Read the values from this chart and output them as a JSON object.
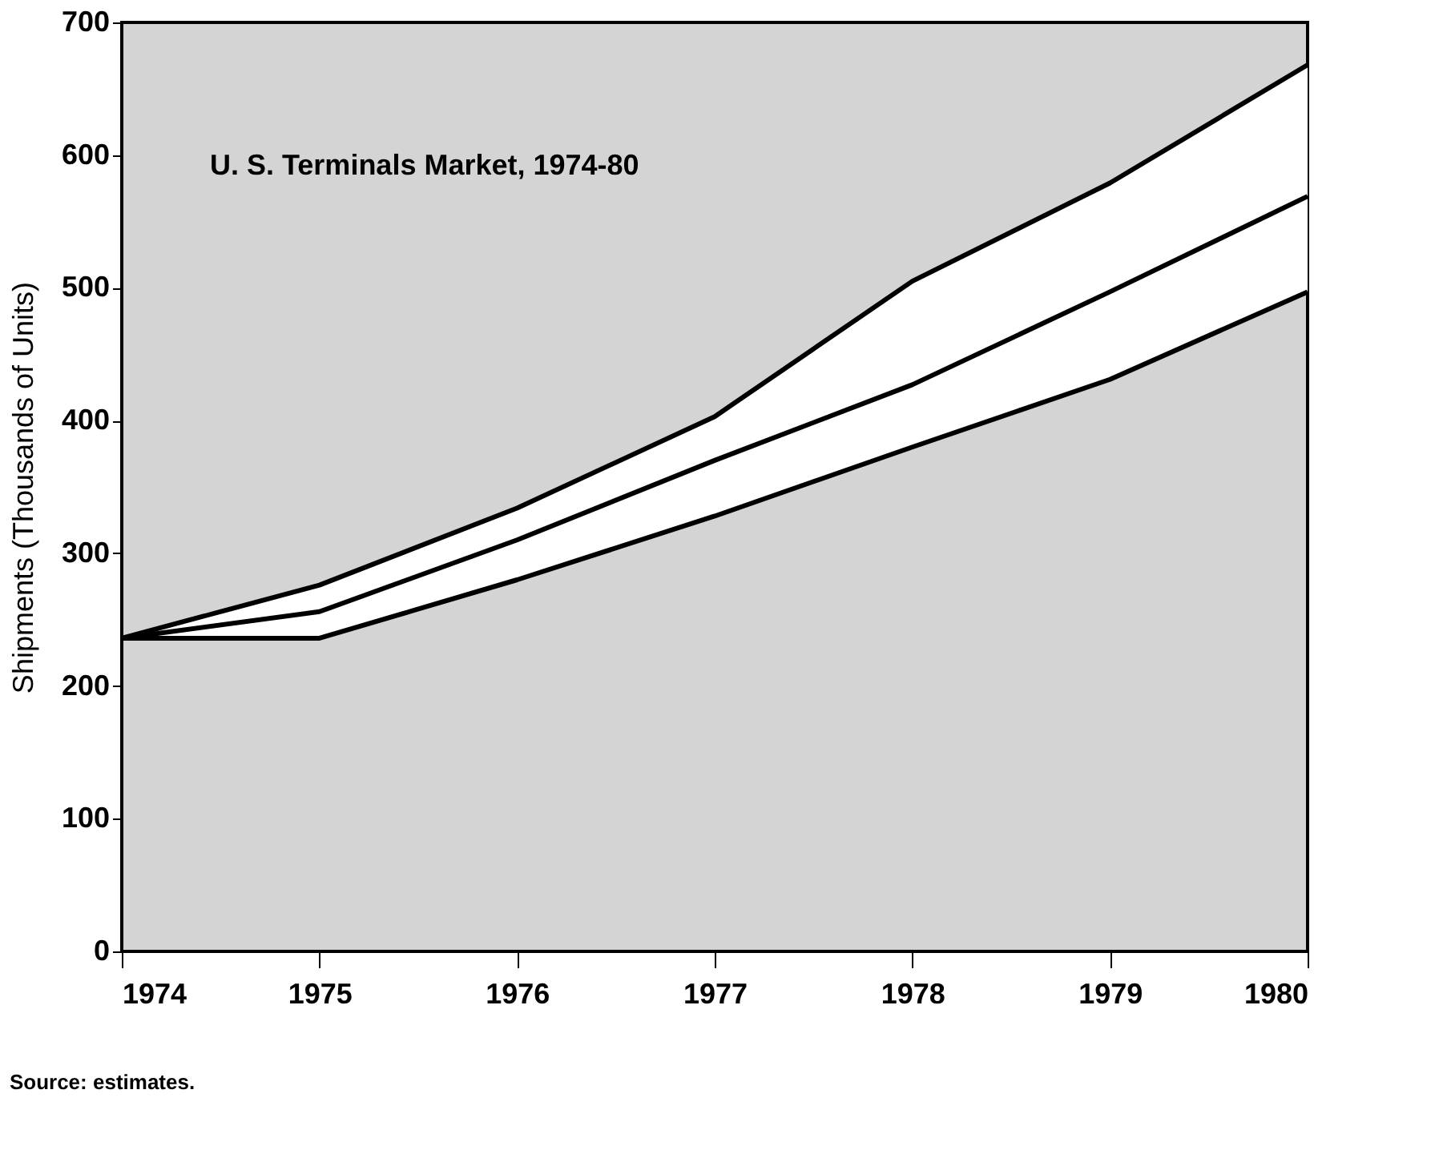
{
  "chart_data": {
    "type": "line",
    "title": "U. S. Terminals Market, 1974-80",
    "ylabel": "Shipments (Thousands of Units)",
    "x": [
      1974,
      1975,
      1976,
      1977,
      1978,
      1979,
      1980
    ],
    "series": [
      {
        "color": "#000000",
        "values": [
          236,
          276,
          334,
          403,
          505,
          579,
          668
        ]
      },
      {
        "color": "#000000",
        "values": [
          236,
          256,
          310,
          370,
          427,
          497,
          569
        ]
      },
      {
        "color": "#000000",
        "values": [
          236,
          236,
          280,
          328,
          380,
          431,
          497
        ]
      }
    ],
    "xlim": [
      1974,
      1980
    ],
    "xticks": [
      1974,
      1975,
      1976,
      1977,
      1978,
      1979,
      1980
    ],
    "ylim": [
      0,
      700
    ],
    "yticks": [
      0,
      100,
      200,
      300,
      400,
      500,
      600,
      700
    ],
    "grid": false,
    "marker": "none",
    "line_style": "solid",
    "legend": false,
    "annotations": [
      "Source: estimates."
    ]
  }
}
